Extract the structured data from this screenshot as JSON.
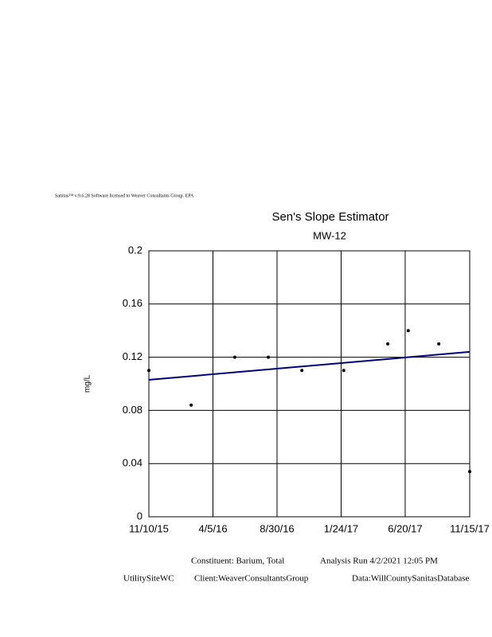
{
  "chart_data": {
    "type": "scatter",
    "header": "Sanitas™ v.9.6.28 Software licensed to Weaver Consultants Group. EPA",
    "title": "Sen's Slope Estimator",
    "subtitle": "MW-12",
    "y_label": "mg/L",
    "x": [
      "2015-11-10",
      "2016-02-15",
      "2016-05-25",
      "2016-08-10",
      "2016-10-26",
      "2017-01-30",
      "2017-05-11",
      "2017-06-27",
      "2017-09-05",
      "2017-11-15"
    ],
    "values": [
      0.11,
      0.084,
      0.12,
      0.12,
      0.11,
      0.11,
      0.13,
      0.14,
      0.13,
      0.034
    ],
    "color": "#000000",
    "trend_line": {
      "x": [
        "2015-11-10",
        "2017-11-15"
      ],
      "values": [
        0.103,
        0.124
      ],
      "color": "#00007f"
    },
    "xlim": [
      "2015-11-10",
      "2017-11-15"
    ],
    "xticks": [
      {
        "value": "2015-11-10",
        "label": "11/10/15"
      },
      {
        "value": "2016-04-05",
        "label": "4/5/16"
      },
      {
        "value": "2016-08-30",
        "label": "8/30/16"
      },
      {
        "value": "2017-01-24",
        "label": "1/24/17"
      },
      {
        "value": "2017-06-20",
        "label": "6/20/17"
      },
      {
        "value": "2017-11-15",
        "label": "11/15/17"
      }
    ],
    "ylim": [
      0,
      0.2
    ],
    "yticks": [
      0,
      0.04,
      0.08,
      0.12,
      0.16,
      0.2
    ],
    "grid": true,
    "footer": {
      "constituent": "Constituent:  Barium, Total",
      "run": "Analysis Run 4/2/2021 12:05 PM",
      "site": "UtilitySiteWC",
      "client": "Client:WeaverConsultantsGroup",
      "data": "Data:WillCountySanitasDatabase"
    }
  }
}
